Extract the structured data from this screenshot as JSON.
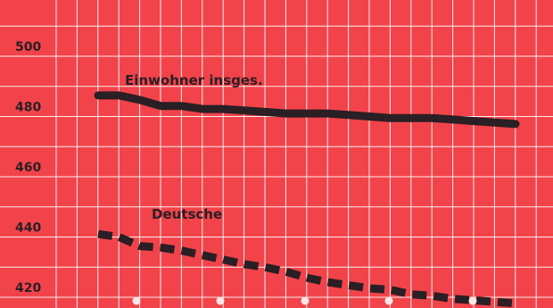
{
  "chart_data": {
    "type": "line",
    "background_color": "#f2434a",
    "grid_color": "#ffffff",
    "ink_color": "#2a1f24",
    "grid": true,
    "ylim": [
      416,
      520
    ],
    "yticks": [
      500,
      480,
      460,
      440,
      420
    ],
    "x": [
      1,
      2,
      3,
      4,
      5,
      6,
      7,
      8,
      9,
      10,
      11,
      12,
      13,
      14,
      15,
      16,
      17,
      18,
      19,
      20,
      21
    ],
    "series": [
      {
        "name": "Einwohner insges.",
        "style": "solid",
        "values": [
          487,
          487,
          485.5,
          483.5,
          483.5,
          482.5,
          482.5,
          482,
          481.5,
          481,
          481,
          481,
          480.5,
          480,
          479.5,
          479.5,
          479.5,
          479,
          478.5,
          478,
          477.5
        ]
      },
      {
        "name": "Deutsche",
        "style": "dashed",
        "values": [
          441,
          440,
          437,
          436.5,
          435.5,
          434,
          432.5,
          431,
          430,
          428.5,
          426.5,
          425,
          424,
          423,
          422.5,
          421,
          420.5,
          419.5,
          419,
          418.5,
          418
        ]
      }
    ]
  }
}
